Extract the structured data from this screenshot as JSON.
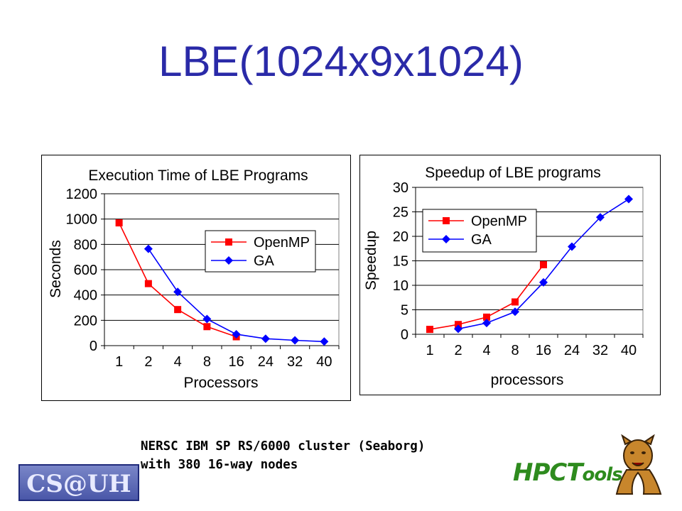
{
  "slide": {
    "title": "LBE(1024x9x1024)",
    "caption_line1": "NERSC IBM SP RS/6000 cluster (Seaborg)",
    "caption_line2": "with 380 16-way nodes",
    "logo_left": "CS@UH",
    "logo_right_main": "HPCT",
    "logo_right_sub": "ools",
    "colors": {
      "title": "#2a2aa8",
      "openmp": "#ff0000",
      "ga": "#0000ff"
    }
  },
  "chart_data": [
    {
      "type": "line",
      "title": "Execution Time of LBE Programs",
      "xlabel": "Processors",
      "ylabel": "Seconds",
      "categories": [
        "1",
        "2",
        "4",
        "8",
        "16",
        "24",
        "32",
        "40"
      ],
      "ylim": [
        0,
        1200
      ],
      "yticks": [
        0,
        200,
        400,
        600,
        800,
        1000,
        1200
      ],
      "grid": true,
      "legend_position": "center-right",
      "series": [
        {
          "name": "OpenMP",
          "color": "#ff0000",
          "marker": "square",
          "values": [
            970,
            490,
            285,
            150,
            70,
            null,
            null,
            null
          ]
        },
        {
          "name": "GA",
          "color": "#0000ff",
          "marker": "diamond",
          "values": [
            null,
            765,
            425,
            210,
            90,
            55,
            42,
            32
          ]
        }
      ]
    },
    {
      "type": "line",
      "title": "Speedup of LBE programs",
      "xlabel": "processors",
      "ylabel": "Speedup",
      "categories": [
        "1",
        "2",
        "4",
        "8",
        "16",
        "24",
        "32",
        "40"
      ],
      "ylim": [
        0,
        30
      ],
      "yticks": [
        0,
        5,
        10,
        15,
        20,
        25,
        30
      ],
      "grid": true,
      "legend_position": "top-left",
      "series": [
        {
          "name": "OpenMP",
          "color": "#ff0000",
          "marker": "square",
          "values": [
            1.0,
            2.0,
            3.5,
            6.6,
            14.2,
            null,
            null,
            null
          ]
        },
        {
          "name": "GA",
          "color": "#0000ff",
          "marker": "diamond",
          "values": [
            null,
            1.1,
            2.3,
            4.6,
            10.6,
            17.9,
            23.9,
            27.6
          ]
        }
      ]
    }
  ]
}
